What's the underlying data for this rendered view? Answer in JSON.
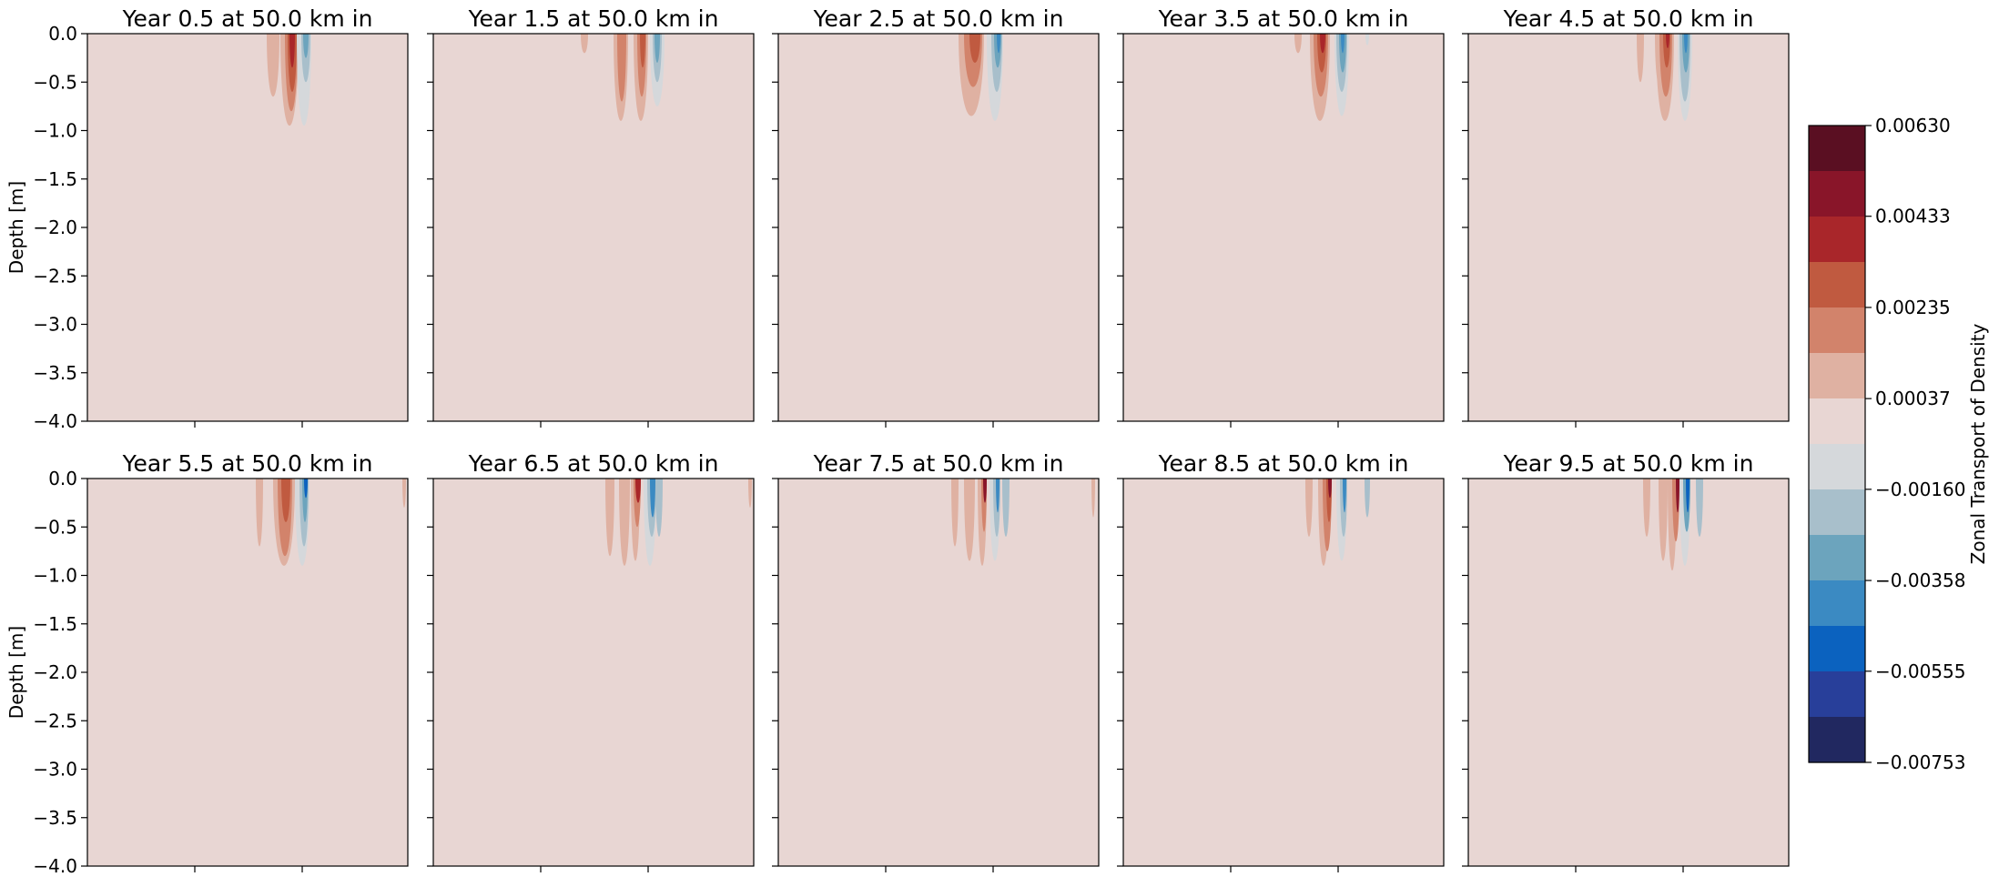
{
  "chart_data": {
    "type": "heatmap",
    "panels": [
      {
        "title": "Year 0.5 at 50.0 km in"
      },
      {
        "title": "Year 1.5 at 50.0 km in"
      },
      {
        "title": "Year 2.5 at 50.0 km in"
      },
      {
        "title": "Year 3.5 at 50.0 km in"
      },
      {
        "title": "Year 4.5 at 50.0 km in"
      },
      {
        "title": "Year 5.5 at 50.0 km in"
      },
      {
        "title": "Year 6.5 at 50.0 km in"
      },
      {
        "title": "Year 7.5 at 50.0 km in"
      },
      {
        "title": "Year 8.5 at 50.0 km in"
      },
      {
        "title": "Year 9.5 at 50.0 km in"
      }
    ],
    "layout_grid": {
      "rows": 2,
      "cols": 5
    },
    "ylabel": "Depth [m]",
    "ylim": [
      -4.0,
      0.0
    ],
    "yticks": [
      "0.0",
      "-0.5",
      "-1.0",
      "-1.5",
      "-2.0",
      "-2.5",
      "-3.0",
      "-3.5",
      "-4.0"
    ],
    "xticks_labeled": false,
    "grid": false,
    "background_level_color": "#e8d6d3",
    "colorbar": {
      "label": "Zonal Transport of Density",
      "range": [
        -0.00753,
        0.0063
      ],
      "tick_values": [
        0.0063,
        0.00433,
        0.00235,
        0.00037,
        -0.0016,
        -0.00358,
        -0.00555,
        -0.00753
      ],
      "tick_labels": [
        "0.00630",
        "0.00433",
        "0.00235",
        "0.00037",
        "−0.00160",
        "−0.00358",
        "−0.00555",
        "−0.00753"
      ],
      "levels_top_to_bottom": [
        "#5a0f22",
        "#891529",
        "#a9262a",
        "#c05a40",
        "#d2836b",
        "#dfb1a2",
        "#e8d6d3",
        "#d5d8db",
        "#a8bfcb",
        "#6ca4bd",
        "#3b8ac2",
        "#0b62bf",
        "#283f9a",
        "#212860"
      ]
    }
  }
}
